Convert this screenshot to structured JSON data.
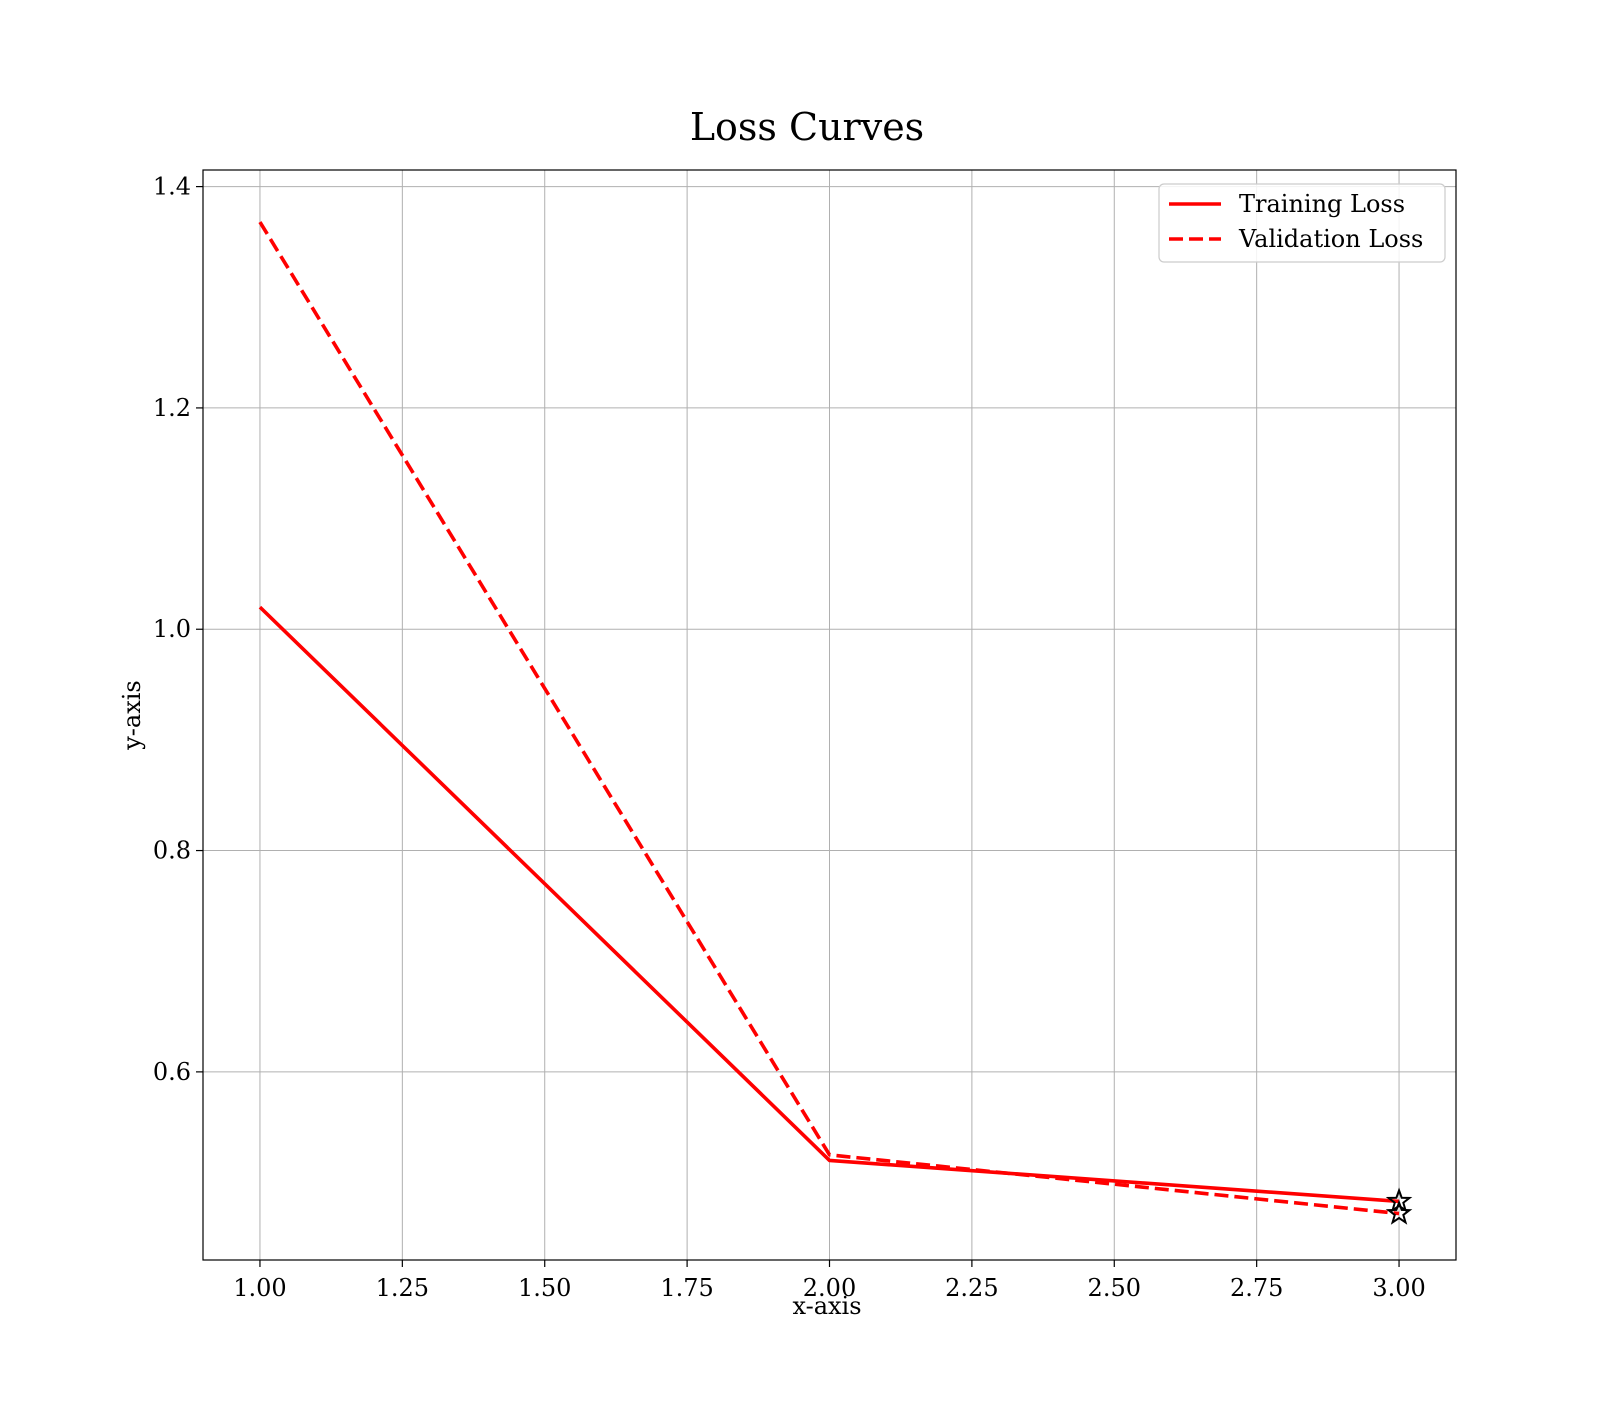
{
  "chart_data": {
    "type": "line",
    "title": "Loss Curves",
    "xlabel": "x-axis",
    "ylabel": "y-axis",
    "xlim": [
      0.9,
      3.1
    ],
    "ylim": [
      0.43,
      1.415
    ],
    "x_ticks": [
      1.0,
      1.25,
      1.5,
      1.75,
      2.0,
      2.25,
      2.5,
      2.75,
      3.0
    ],
    "x_tick_labels": [
      "1.00",
      "1.25",
      "1.50",
      "1.75",
      "2.00",
      "2.25",
      "2.50",
      "2.75",
      "3.00"
    ],
    "y_ticks": [
      0.6,
      0.8,
      1.0,
      1.2,
      1.4
    ],
    "y_tick_labels": [
      "0.6",
      "0.8",
      "1.0",
      "1.2",
      "1.4"
    ],
    "grid": true,
    "legend_position": "top-right",
    "x": [
      1,
      2,
      3
    ],
    "series": [
      {
        "name": "Training Loss",
        "values": [
          1.02,
          0.52,
          0.483
        ],
        "color": "#ff0000",
        "line_style": "solid",
        "end_marker": "star"
      },
      {
        "name": "Validation Loss",
        "values": [
          1.368,
          0.525,
          0.472
        ],
        "color": "#ff0000",
        "line_style": "dashed",
        "end_marker": "star"
      }
    ]
  }
}
